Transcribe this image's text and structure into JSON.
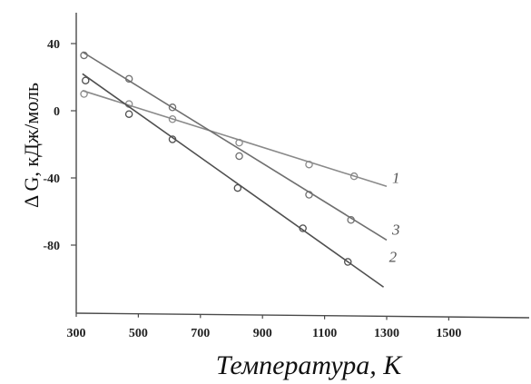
{
  "chart_data": {
    "type": "line",
    "title": "",
    "xlabel": "Температура, К",
    "ylabel": "Δ G, кДж/моль",
    "xlim": [
      300,
      1500
    ],
    "ylim": [
      -110,
      45
    ],
    "x_ticks": [
      300,
      500,
      700,
      900,
      1100,
      1300,
      1500
    ],
    "x_tick_labels": [
      "300",
      "500",
      "700",
      "900",
      "1100",
      "1300",
      "1500"
    ],
    "y_ticks": [
      40,
      0,
      -40,
      -80
    ],
    "y_tick_labels": [
      "40",
      "0",
      "-40",
      "-80"
    ],
    "grid": false,
    "legend": "inline labels at line ends",
    "series": [
      {
        "name": "1",
        "color": "#8a8a8a",
        "line": [
          [
            320,
            12
          ],
          [
            1300,
            -45
          ]
        ],
        "points": [
          [
            325,
            10
          ],
          [
            470,
            4
          ],
          [
            610,
            -5
          ],
          [
            825,
            -19
          ],
          [
            1050,
            -32
          ],
          [
            1195,
            -39
          ]
        ]
      },
      {
        "name": "3",
        "color": "#6f6f6f",
        "line": [
          [
            320,
            35
          ],
          [
            1300,
            -77
          ]
        ],
        "points": [
          [
            325,
            33
          ],
          [
            470,
            19
          ],
          [
            610,
            2
          ],
          [
            825,
            -27
          ],
          [
            1050,
            -50
          ],
          [
            1185,
            -65
          ]
        ]
      },
      {
        "name": "2",
        "color": "#4f4f4f",
        "line": [
          [
            320,
            22
          ],
          [
            1290,
            -105
          ]
        ],
        "points": [
          [
            330,
            18
          ],
          [
            470,
            -2
          ],
          [
            610,
            -17
          ],
          [
            820,
            -46
          ],
          [
            1030,
            -70
          ],
          [
            1175,
            -90
          ]
        ]
      }
    ]
  }
}
